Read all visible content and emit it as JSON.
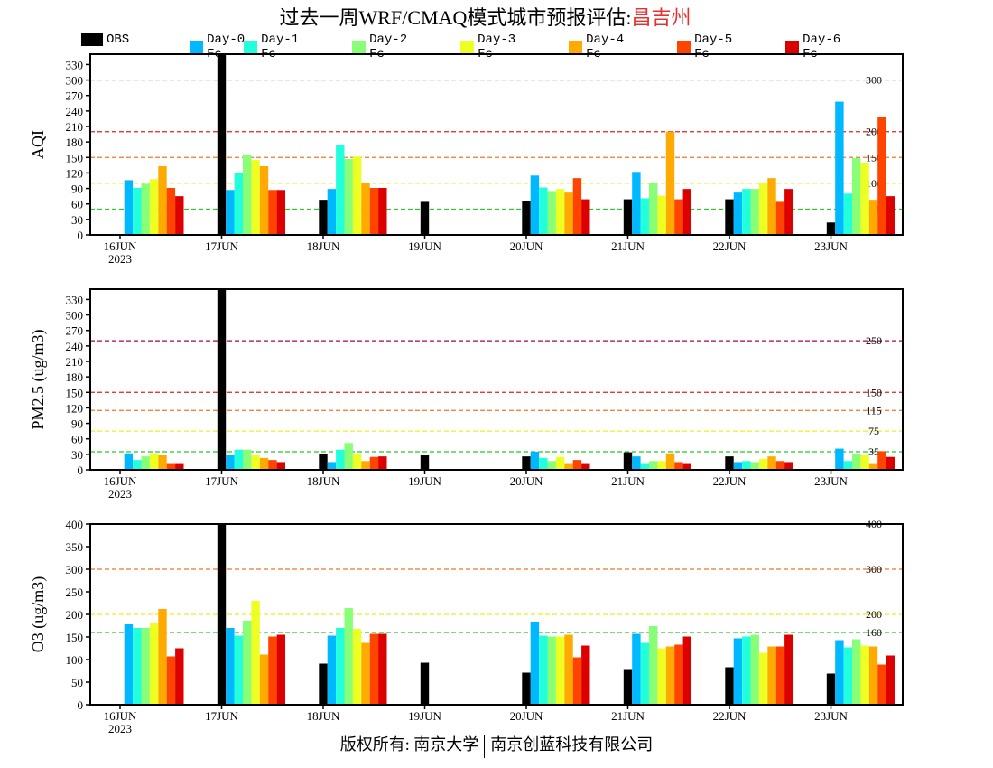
{
  "title": {
    "prefix": "过去一周WRF/CMAQ模式城市预报评估:",
    "city": "昌吉州"
  },
  "footer": {
    "left": "版权所有: 南京大学",
    "right": "南京创蓝科技有限公司"
  },
  "chart_data": [
    {
      "type": "bar",
      "ylabel": "AQI",
      "ylim": [
        0,
        350
      ],
      "yticks": [
        0,
        30,
        60,
        90,
        120,
        150,
        180,
        210,
        240,
        270,
        300,
        330
      ],
      "categories": [
        "16JUN",
        "17JUN",
        "18JUN",
        "19JUN",
        "20JUN",
        "21JUN",
        "22JUN",
        "23JUN"
      ],
      "year_label": "2023",
      "thresholds": [
        {
          "value": 50,
          "label": "50",
          "color": "#22cc22"
        },
        {
          "value": 100,
          "label": "100",
          "color": "#eeee22"
        },
        {
          "value": 150,
          "label": "150",
          "color": "#ee7722"
        },
        {
          "value": 200,
          "label": "200",
          "color": "#dd2222"
        },
        {
          "value": 300,
          "label": "300",
          "color": "#aa0055"
        }
      ],
      "series": [
        {
          "name": "OBS",
          "color": "#000000",
          "values": [
            null,
            360,
            68,
            64,
            66,
            69,
            69,
            24
          ]
        },
        {
          "name": "Day-0 Fc",
          "color": "#00b8ff",
          "values": [
            106,
            87,
            89,
            null,
            115,
            122,
            82,
            258
          ]
        },
        {
          "name": "Day-1 Fc",
          "color": "#22ffdd",
          "values": [
            91,
            119,
            174,
            null,
            92,
            71,
            89,
            80
          ]
        },
        {
          "name": "Day-2 Fc",
          "color": "#88ff77",
          "values": [
            99,
            156,
            147,
            null,
            85,
            101,
            89,
            149
          ]
        },
        {
          "name": "Day-3 Fc",
          "color": "#eeff22",
          "values": [
            108,
            145,
            152,
            null,
            89,
            76,
            101,
            140
          ]
        },
        {
          "name": "Day-4 Fc",
          "color": "#ffaa00",
          "values": [
            133,
            133,
            101,
            null,
            82,
            200,
            110,
            68
          ]
        },
        {
          "name": "Day-5 Fc",
          "color": "#ff4400",
          "values": [
            91,
            87,
            91,
            null,
            110,
            69,
            64,
            228
          ]
        },
        {
          "name": "Day-6 Fc",
          "color": "#dd0000",
          "values": [
            75,
            87,
            91,
            null,
            69,
            89,
            89,
            75
          ]
        }
      ]
    },
    {
      "type": "bar",
      "ylabel": "PM2.5 (ug/m3)",
      "ylim": [
        0,
        350
      ],
      "yticks": [
        0,
        30,
        60,
        90,
        120,
        150,
        180,
        210,
        240,
        270,
        300,
        330
      ],
      "categories": [
        "16JUN",
        "17JUN",
        "18JUN",
        "19JUN",
        "20JUN",
        "21JUN",
        "22JUN",
        "23JUN"
      ],
      "year_label": "2023",
      "thresholds": [
        {
          "value": 35,
          "label": "35",
          "color": "#22cc22"
        },
        {
          "value": 75,
          "label": "75",
          "color": "#eeee22"
        },
        {
          "value": 115,
          "label": "115",
          "color": "#ee7722"
        },
        {
          "value": 150,
          "label": "150",
          "color": "#dd2222"
        },
        {
          "value": 250,
          "label": "250",
          "color": "#aa0055"
        }
      ],
      "series": [
        {
          "name": "OBS",
          "color": "#000000",
          "values": [
            null,
            360,
            30,
            28,
            26,
            34,
            26,
            null
          ]
        },
        {
          "name": "Day-0 Fc",
          "color": "#00b8ff",
          "values": [
            32,
            28,
            15,
            null,
            35,
            26,
            15,
            41
          ]
        },
        {
          "name": "Day-1 Fc",
          "color": "#22ffdd",
          "values": [
            19,
            39,
            39,
            null,
            23,
            13,
            17,
            17
          ]
        },
        {
          "name": "Day-2 Fc",
          "color": "#88ff77",
          "values": [
            26,
            39,
            52,
            null,
            17,
            17,
            15,
            30
          ]
        },
        {
          "name": "Day-3 Fc",
          "color": "#eeff22",
          "values": [
            32,
            28,
            30,
            null,
            25,
            17,
            21,
            28
          ]
        },
        {
          "name": "Day-4 Fc",
          "color": "#ffaa00",
          "values": [
            28,
            23,
            17,
            null,
            13,
            32,
            26,
            13
          ]
        },
        {
          "name": "Day-5 Fc",
          "color": "#ff4400",
          "values": [
            13,
            19,
            25,
            null,
            19,
            15,
            17,
            36
          ]
        },
        {
          "name": "Day-6 Fc",
          "color": "#dd0000",
          "values": [
            13,
            15,
            26,
            null,
            13,
            13,
            15,
            25
          ]
        }
      ]
    },
    {
      "type": "bar",
      "ylabel": "O3 (ug/m3)",
      "ylim": [
        0,
        400
      ],
      "yticks": [
        0,
        50,
        100,
        150,
        200,
        250,
        300,
        350,
        400
      ],
      "categories": [
        "16JUN",
        "17JUN",
        "18JUN",
        "19JUN",
        "20JUN",
        "21JUN",
        "22JUN",
        "23JUN"
      ],
      "year_label": "2023",
      "thresholds": [
        {
          "value": 160,
          "label": "160",
          "color": "#22cc22"
        },
        {
          "value": 200,
          "label": "200",
          "color": "#eeee22"
        },
        {
          "value": 300,
          "label": "300",
          "color": "#ee7722"
        },
        {
          "value": 400,
          "label": "400",
          "color": "#dd2222"
        }
      ],
      "series": [
        {
          "name": "OBS",
          "color": "#000000",
          "values": [
            null,
            400,
            91,
            93,
            71,
            79,
            83,
            69
          ]
        },
        {
          "name": "Day-0 Fc",
          "color": "#00b8ff",
          "values": [
            178,
            170,
            153,
            null,
            184,
            157,
            147,
            143
          ]
        },
        {
          "name": "Day-1 Fc",
          "color": "#22ffdd",
          "values": [
            170,
            153,
            170,
            null,
            153,
            137,
            151,
            127
          ]
        },
        {
          "name": "Day-2 Fc",
          "color": "#88ff77",
          "values": [
            170,
            186,
            214,
            null,
            151,
            174,
            155,
            145
          ]
        },
        {
          "name": "Day-3 Fc",
          "color": "#eeff22",
          "values": [
            182,
            230,
            168,
            null,
            151,
            125,
            115,
            131
          ]
        },
        {
          "name": "Day-4 Fc",
          "color": "#ffaa00",
          "values": [
            212,
            111,
            137,
            null,
            155,
            129,
            129,
            129
          ]
        },
        {
          "name": "Day-5 Fc",
          "color": "#ff4400",
          "values": [
            107,
            151,
            157,
            null,
            105,
            133,
            129,
            89
          ]
        },
        {
          "name": "Day-6 Fc",
          "color": "#dd0000",
          "values": [
            125,
            155,
            157,
            null,
            131,
            151,
            155,
            109
          ]
        }
      ]
    }
  ]
}
